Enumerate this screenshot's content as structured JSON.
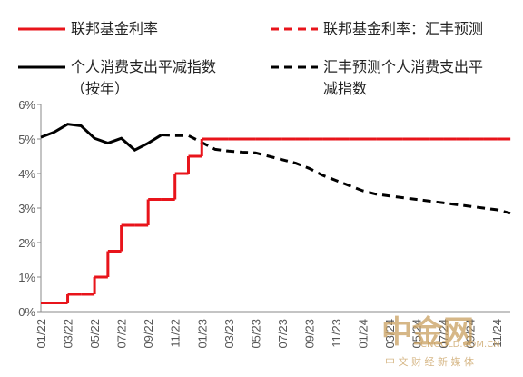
{
  "chart_data": {
    "type": "line",
    "categories": [
      "01/22",
      null,
      "03/22",
      null,
      "05/22",
      null,
      "07/22",
      null,
      "09/22",
      null,
      "11/22",
      null,
      "01/23",
      null,
      "03/23",
      null,
      "05/23",
      null,
      "07/23",
      null,
      "09/23",
      null,
      "11/23",
      null,
      "01/24",
      null,
      "03/24",
      null,
      "05/24",
      null,
      "07/24",
      null,
      "09/24",
      null,
      "11/24",
      null
    ],
    "series": [
      {
        "name": "联邦基金利率",
        "color": "#e8141b",
        "dash": false,
        "step": true,
        "values": [
          0.25,
          0.25,
          0.5,
          0.5,
          1.0,
          1.75,
          2.5,
          2.5,
          3.25,
          3.25,
          4.0,
          4.5,
          5.0,
          5.0,
          5.0,
          5.0,
          5.0,
          5.0,
          5.0,
          5.0,
          5.0,
          5.0,
          5.0,
          5.0,
          5.0,
          5.0,
          5.0,
          5.0,
          5.0,
          5.0,
          5.0,
          5.0,
          5.0,
          5.0,
          5.0,
          5.0
        ]
      },
      {
        "name": "联邦基金利率：汇丰预测",
        "color": "#e8141b",
        "dash": true,
        "step": true,
        "values": [
          null,
          null,
          null,
          null,
          null,
          null,
          null,
          null,
          null,
          null,
          null,
          null,
          5.0,
          5.0,
          5.0,
          5.0,
          5.0,
          5.0,
          5.0,
          5.0,
          5.0,
          5.0,
          5.0,
          5.0,
          5.0,
          5.0,
          5.0,
          5.0,
          5.0,
          5.0,
          5.0,
          5.0,
          5.0,
          5.0,
          5.0,
          5.0
        ]
      },
      {
        "name": "个人消费支出平减指数（按年）",
        "color": "#000000",
        "dash": false,
        "step": false,
        "values": [
          5.05,
          5.2,
          5.43,
          5.38,
          5.02,
          4.88,
          5.02,
          4.68,
          4.88,
          5.12,
          null,
          null,
          null,
          null,
          null,
          null,
          null,
          null,
          null,
          null,
          null,
          null,
          null,
          null,
          null,
          null,
          null,
          null,
          null,
          null,
          null,
          null,
          null,
          null,
          null,
          null
        ]
      },
      {
        "name": "汇丰预测个人消费支出平减指数",
        "color": "#000000",
        "dash": true,
        "step": false,
        "values": [
          null,
          null,
          null,
          null,
          null,
          null,
          null,
          null,
          null,
          5.12,
          5.1,
          5.1,
          4.9,
          4.7,
          4.65,
          4.62,
          4.6,
          4.5,
          4.4,
          4.3,
          4.15,
          3.95,
          3.8,
          3.65,
          3.5,
          3.4,
          3.35,
          3.3,
          3.25,
          3.2,
          3.15,
          3.1,
          3.05,
          3.0,
          2.95,
          2.85
        ]
      }
    ],
    "ylim": [
      0,
      6
    ],
    "yticks": [
      {
        "value": 0,
        "label": "0%"
      },
      {
        "value": 1,
        "label": "1%"
      },
      {
        "value": 2,
        "label": "2%"
      },
      {
        "value": 3,
        "label": "3%"
      },
      {
        "value": 4,
        "label": "4%"
      },
      {
        "value": 5,
        "label": "5%"
      },
      {
        "value": 6,
        "label": "6%"
      }
    ],
    "grid": false,
    "watermark": {
      "text": "中金网",
      "url": "CNGOLD.COM.CN",
      "tagline": "中 文 财 经 新 媒 体"
    }
  }
}
